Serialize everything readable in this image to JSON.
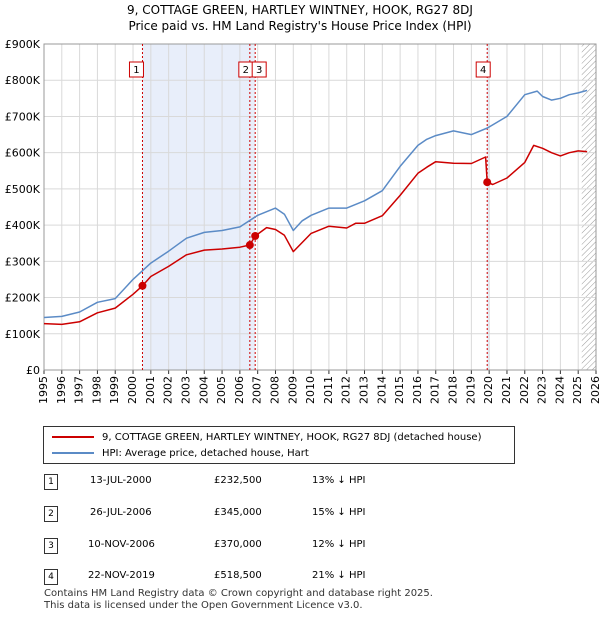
{
  "title_line1": "9, COTTAGE GREEN, HARTLEY WINTNEY, HOOK, RG27 8DJ",
  "title_line2": "Price paid vs. HM Land Registry's House Price Index (HPI)",
  "chart_data": {
    "type": "line",
    "title": "9, COTTAGE GREEN, HARTLEY WINTNEY, HOOK, RG27 8DJ — Price paid vs. HM Land Registry's House Price Index (HPI)",
    "xlim": [
      1995,
      2026
    ],
    "ylim": [
      0,
      900000
    ],
    "y_ticks": [
      {
        "value": 0,
        "label": "£0"
      },
      {
        "value": 100000,
        "label": "£100K"
      },
      {
        "value": 200000,
        "label": "£200K"
      },
      {
        "value": 300000,
        "label": "£300K"
      },
      {
        "value": 400000,
        "label": "£400K"
      },
      {
        "value": 500000,
        "label": "£500K"
      },
      {
        "value": 600000,
        "label": "£600K"
      },
      {
        "value": 700000,
        "label": "£700K"
      },
      {
        "value": 800000,
        "label": "£800K"
      },
      {
        "value": 900000,
        "label": "£900K"
      }
    ],
    "x_ticks": [
      "1995",
      "1996",
      "1997",
      "1998",
      "1999",
      "2000",
      "2001",
      "2002",
      "2003",
      "2004",
      "2005",
      "2006",
      "2007",
      "2008",
      "2009",
      "2010",
      "2011",
      "2012",
      "2013",
      "2014",
      "2015",
      "2016",
      "2017",
      "2018",
      "2019",
      "2020",
      "2021",
      "2022",
      "2023",
      "2024",
      "2025",
      "2026"
    ],
    "shaded_periods": [
      [
        2000.53,
        2006.86
      ],
      [
        2019.89,
        2019.99
      ]
    ],
    "hatched_from": 2025.2,
    "series": [
      {
        "name": "9, COTTAGE GREEN, HARTLEY WINTNEY, HOOK, RG27 8DJ (detached house)",
        "color": "#cc0000",
        "points": [
          [
            1995.0,
            128000
          ],
          [
            1996.0,
            126000
          ],
          [
            1997.0,
            133000
          ],
          [
            1998.0,
            158000
          ],
          [
            1999.0,
            171000
          ],
          [
            2000.0,
            209000
          ],
          [
            2000.53,
            232500
          ],
          [
            2001.0,
            258000
          ],
          [
            2002.0,
            286000
          ],
          [
            2003.0,
            318000
          ],
          [
            2004.0,
            331000
          ],
          [
            2005.0,
            334000
          ],
          [
            2006.0,
            339000
          ],
          [
            2006.56,
            345000
          ],
          [
            2006.86,
            370000
          ],
          [
            2007.5,
            393000
          ],
          [
            2008.0,
            388000
          ],
          [
            2008.5,
            372000
          ],
          [
            2009.0,
            327000
          ],
          [
            2009.5,
            352000
          ],
          [
            2010.0,
            377000
          ],
          [
            2011.0,
            397000
          ],
          [
            2012.0,
            392000
          ],
          [
            2012.5,
            405000
          ],
          [
            2013.0,
            405000
          ],
          [
            2014.0,
            426000
          ],
          [
            2015.0,
            482000
          ],
          [
            2016.0,
            543000
          ],
          [
            2016.5,
            560000
          ],
          [
            2017.0,
            575000
          ],
          [
            2018.0,
            571000
          ],
          [
            2019.0,
            570000
          ],
          [
            2019.8,
            588000
          ],
          [
            2019.89,
            518500
          ],
          [
            2020.2,
            512000
          ],
          [
            2021.0,
            530000
          ],
          [
            2022.0,
            573000
          ],
          [
            2022.5,
            620000
          ],
          [
            2023.0,
            612000
          ],
          [
            2023.5,
            600000
          ],
          [
            2024.0,
            591000
          ],
          [
            2024.5,
            600000
          ],
          [
            2025.0,
            605000
          ],
          [
            2025.5,
            603000
          ]
        ]
      },
      {
        "name": "HPI: Average price, detached house, Hart",
        "color": "#5b8bc6",
        "points": [
          [
            1995.0,
            145000
          ],
          [
            1996.0,
            148000
          ],
          [
            1997.0,
            160000
          ],
          [
            1998.0,
            187000
          ],
          [
            1999.0,
            197000
          ],
          [
            2000.0,
            250000
          ],
          [
            2001.0,
            295000
          ],
          [
            2002.0,
            328000
          ],
          [
            2003.0,
            364000
          ],
          [
            2004.0,
            380000
          ],
          [
            2005.0,
            385000
          ],
          [
            2006.0,
            395000
          ],
          [
            2007.0,
            427000
          ],
          [
            2008.0,
            447000
          ],
          [
            2008.5,
            430000
          ],
          [
            2009.0,
            385000
          ],
          [
            2009.5,
            412000
          ],
          [
            2010.0,
            427000
          ],
          [
            2011.0,
            447000
          ],
          [
            2012.0,
            447000
          ],
          [
            2013.0,
            467000
          ],
          [
            2014.0,
            495000
          ],
          [
            2015.0,
            562000
          ],
          [
            2016.0,
            620000
          ],
          [
            2016.5,
            637000
          ],
          [
            2017.0,
            647000
          ],
          [
            2018.0,
            660000
          ],
          [
            2019.0,
            650000
          ],
          [
            2019.9,
            668000
          ],
          [
            2021.0,
            700000
          ],
          [
            2022.0,
            760000
          ],
          [
            2022.7,
            770000
          ],
          [
            2023.0,
            755000
          ],
          [
            2023.5,
            745000
          ],
          [
            2024.0,
            750000
          ],
          [
            2024.5,
            760000
          ],
          [
            2025.0,
            765000
          ],
          [
            2025.5,
            772000
          ]
        ]
      }
    ],
    "sales": [
      {
        "label": "1",
        "x": 2000.53,
        "price": 232500
      },
      {
        "label": "2",
        "x": 2006.56,
        "price": 345000
      },
      {
        "label": "3",
        "x": 2006.86,
        "price": 370000
      },
      {
        "label": "4",
        "x": 2019.89,
        "price": 518500
      }
    ]
  },
  "legend": {
    "series1": "9, COTTAGE GREEN, HARTLEY WINTNEY, HOOK, RG27 8DJ (detached house)",
    "series2": "HPI: Average price, detached house, Hart"
  },
  "sales_table": [
    {
      "num": "1",
      "date": "13-JUL-2000",
      "price": "£232,500",
      "diff": "13% ↓ HPI"
    },
    {
      "num": "2",
      "date": "26-JUL-2006",
      "price": "£345,000",
      "diff": "15% ↓ HPI"
    },
    {
      "num": "3",
      "date": "10-NOV-2006",
      "price": "£370,000",
      "diff": "12% ↓ HPI"
    },
    {
      "num": "4",
      "date": "22-NOV-2019",
      "price": "£518,500",
      "diff": "21% ↓ HPI"
    }
  ],
  "footer": {
    "line1": "Contains HM Land Registry data © Crown copyright and database right 2025.",
    "line2": "This data is licensed under the Open Government Licence v3.0."
  },
  "colors": {
    "price_line": "#cc0000",
    "hpi_line": "#5b8bc6",
    "shade": "#e8eefa",
    "marker_line": "#cc0000"
  }
}
